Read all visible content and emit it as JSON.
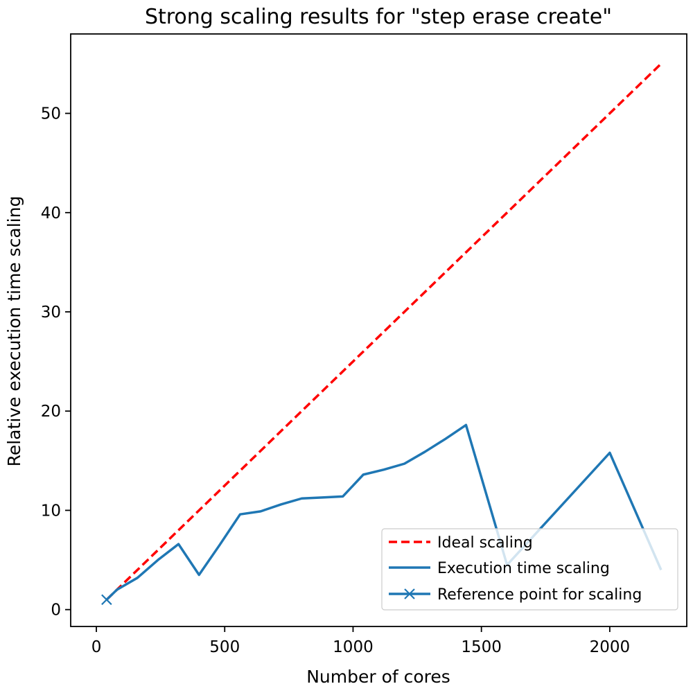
{
  "chart_data": {
    "type": "line",
    "title": "Strong scaling results for \"step erase create\"",
    "xlabel": "Number of cores",
    "ylabel": "Relative execution time scaling",
    "xlim": [
      -100,
      2300
    ],
    "ylim": [
      -1.7,
      58
    ],
    "xticks": [
      0,
      500,
      1000,
      1500,
      2000
    ],
    "yticks": [
      0,
      10,
      20,
      30,
      40,
      50
    ],
    "grid": false,
    "legend": {
      "placement": "lower right",
      "entries": [
        "Ideal scaling",
        "Execution time scaling",
        "Reference point for scaling"
      ]
    },
    "series": [
      {
        "name": "Ideal scaling",
        "style": "dashed",
        "color": "#ff0000",
        "x": [
          40,
          2200
        ],
        "y": [
          1,
          55
        ]
      },
      {
        "name": "Execution time scaling",
        "style": "solid",
        "color": "#1f77b4",
        "x": [
          40,
          80,
          160,
          240,
          320,
          400,
          480,
          560,
          640,
          720,
          800,
          880,
          960,
          1040,
          1120,
          1200,
          1280,
          1360,
          1440,
          1600,
          2000,
          2200
        ],
        "y": [
          1,
          2.0,
          3.2,
          5.0,
          6.6,
          3.5,
          6.5,
          9.6,
          9.9,
          10.6,
          11.2,
          11.3,
          11.4,
          13.6,
          14.1,
          14.7,
          15.9,
          17.2,
          18.6,
          4.5,
          15.8,
          4.0
        ]
      },
      {
        "name": "Reference point for scaling",
        "style": "marker-x",
        "color": "#1f77b4",
        "x": [
          40
        ],
        "y": [
          1
        ]
      }
    ]
  }
}
